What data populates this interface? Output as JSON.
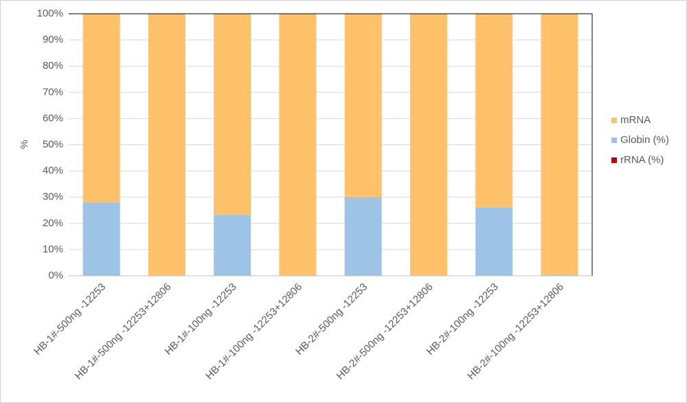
{
  "chart_data": {
    "type": "stacked_bar",
    "y_label": "%",
    "categories": [
      "HB-1#-500ng -12253",
      "HB-1#-500ng -12253+12806",
      "HB-1#-100ng -12253",
      "HB-1#-100ng -12253+12806",
      "HB-2#-500ng -12253",
      "HB-2#-500ng -12253+12806",
      "HB-2#-100ng -12253",
      "HB-2#-100ng -12253+12806"
    ],
    "series": [
      {
        "name": "rRNA (%)",
        "color": "#c00000",
        "values": [
          0,
          0,
          0,
          0,
          0,
          0,
          0,
          0
        ]
      },
      {
        "name": "Globin (%)",
        "color": "#9dc3e6",
        "values": [
          28,
          0,
          23.3,
          0,
          30,
          0,
          26,
          0.3
        ]
      },
      {
        "name": "mRNA",
        "color": "#ffc169",
        "values": [
          72,
          100,
          76.7,
          100,
          70,
          100,
          74,
          99.7
        ]
      }
    ],
    "ylim": [
      0,
      100
    ],
    "yticks": [
      {
        "value": 0,
        "label": "0%"
      },
      {
        "value": 10,
        "label": "10%"
      },
      {
        "value": 20,
        "label": "20%"
      },
      {
        "value": 30,
        "label": "30%"
      },
      {
        "value": 40,
        "label": "40%"
      },
      {
        "value": 50,
        "label": "50%"
      },
      {
        "value": 60,
        "label": "60%"
      },
      {
        "value": 70,
        "label": "70%"
      },
      {
        "value": 80,
        "label": "80%"
      },
      {
        "value": 90,
        "label": "90%"
      },
      {
        "value": 100,
        "label": "100%"
      }
    ],
    "grid": true,
    "legend": "right"
  }
}
